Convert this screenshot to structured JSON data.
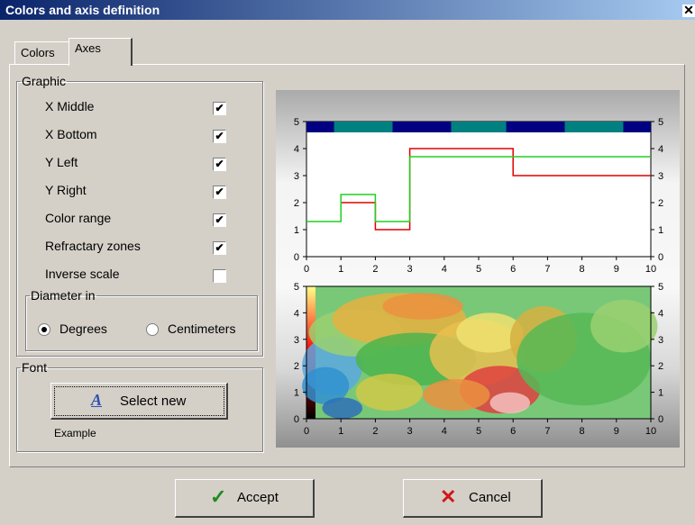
{
  "window": {
    "title": "Colors and axis definition"
  },
  "tabs": [
    {
      "label": "Colors"
    },
    {
      "label": "Axes"
    }
  ],
  "graphic": {
    "legend": "Graphic",
    "options": [
      {
        "label": "X Middle",
        "checked": true
      },
      {
        "label": "X Bottom",
        "checked": true
      },
      {
        "label": "Y Left",
        "checked": true
      },
      {
        "label": "Y Right",
        "checked": true
      },
      {
        "label": "Color range",
        "checked": true
      },
      {
        "label": "Refractary zones",
        "checked": true
      },
      {
        "label": "Inverse scale",
        "checked": false
      }
    ],
    "diameter": {
      "legend": "Diameter in",
      "options": [
        {
          "label": "Degrees",
          "selected": true
        },
        {
          "label": "Centimeters",
          "selected": false
        }
      ]
    }
  },
  "font": {
    "legend": "Font",
    "button_label": "Select new",
    "icon": "font-a-icon",
    "example": "Example"
  },
  "footer": {
    "accept_label": "Accept",
    "cancel_label": "Cancel"
  },
  "colors": {
    "title_dark": "#0a246a",
    "zone_dark": "#000080",
    "zone_teal": "#008080",
    "red_line": "#e00000",
    "green_line": "#20d020"
  },
  "chart_data": [
    {
      "type": "line",
      "xlim": [
        0,
        10
      ],
      "ylim": [
        0,
        5
      ],
      "x_ticks": [
        "0",
        "1",
        "2",
        "3",
        "4",
        "5",
        "6",
        "7",
        "8",
        "9",
        "10"
      ],
      "y_ticks": [
        "0",
        "1",
        "2",
        "3",
        "4",
        "5"
      ],
      "series": [
        {
          "color": "#e00000",
          "step": true,
          "x": [
            1,
            2,
            3,
            6,
            10
          ],
          "y": [
            2,
            1,
            4,
            3,
            3
          ]
        },
        {
          "color": "#20d020",
          "step": true,
          "x": [
            0,
            1,
            2,
            3,
            10
          ],
          "y": [
            1.3,
            2.3,
            1.3,
            3.7,
            3.7
          ]
        }
      ],
      "zones": [
        [
          0.8,
          2.5
        ],
        [
          4.2,
          5.8
        ],
        [
          7.5,
          9.2
        ]
      ]
    },
    {
      "type": "heatmap",
      "xlim": [
        0,
        10
      ],
      "ylim": [
        0,
        5
      ],
      "x_ticks": [
        "0",
        "1",
        "2",
        "3",
        "4",
        "5",
        "6",
        "7",
        "8",
        "9",
        "10"
      ],
      "y_ticks": [
        "0",
        "1",
        "2",
        "3",
        "4",
        "5"
      ],
      "color_range": [
        "#000000",
        "#ff0000",
        "#ffff88"
      ]
    }
  ]
}
